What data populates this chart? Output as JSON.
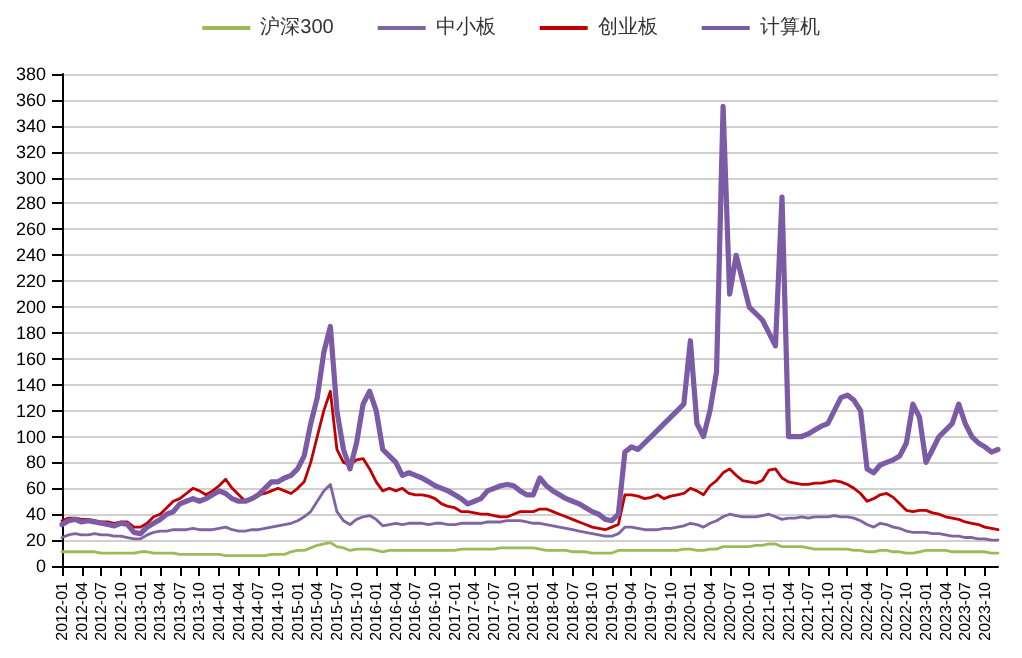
{
  "chart_data": {
    "type": "line",
    "legend": "top",
    "grid": "y",
    "marker": "none",
    "line_style": "solid",
    "ylim": [
      0,
      380
    ],
    "yticks": [
      0,
      20,
      40,
      60,
      80,
      100,
      120,
      140,
      160,
      180,
      200,
      220,
      240,
      260,
      280,
      300,
      320,
      340,
      360,
      380
    ],
    "categories": [
      "2012-01",
      null,
      null,
      "2012-04",
      null,
      null,
      "2012-07",
      null,
      null,
      "2012-10",
      null,
      null,
      "2013-01",
      null,
      null,
      "2013-04",
      null,
      null,
      "2013-07",
      null,
      null,
      "2013-10",
      null,
      null,
      "2014-01",
      null,
      null,
      "2014-04",
      null,
      null,
      "2014-07",
      null,
      null,
      "2014-10",
      null,
      null,
      "2015-01",
      null,
      null,
      "2015-04",
      null,
      null,
      "2015-07",
      null,
      null,
      "2015-10",
      null,
      null,
      "2016-01",
      null,
      null,
      "2016-04",
      null,
      null,
      "2016-07",
      null,
      null,
      "2016-10",
      null,
      null,
      "2017-01",
      null,
      null,
      "2017-04",
      null,
      null,
      "2017-07",
      null,
      null,
      "2017-10",
      null,
      null,
      "2018-01",
      null,
      null,
      "2018-04",
      null,
      null,
      "2018-07",
      null,
      null,
      "2018-10",
      null,
      null,
      "2019-01",
      null,
      null,
      "2019-04",
      null,
      null,
      "2019-07",
      null,
      null,
      "2019-10",
      null,
      null,
      "2020-01",
      null,
      null,
      "2020-04",
      null,
      null,
      "2020-07",
      null,
      null,
      "2020-10",
      null,
      null,
      "2021-01",
      null,
      null,
      "2021-04",
      null,
      null,
      "2021-07",
      null,
      null,
      "2021-10",
      null,
      null,
      "2022-01",
      null,
      null,
      "2022-04",
      null,
      null,
      "2022-07",
      null,
      null,
      "2022-10",
      null,
      null,
      "2023-01",
      null,
      null,
      "2023-04",
      null,
      null,
      "2023-07",
      null,
      null,
      "2023-10",
      null,
      null
    ],
    "series": [
      {
        "name": "沪深300",
        "color": "#9bbb59",
        "values": [
          11,
          11,
          11,
          11,
          11,
          11,
          10,
          10,
          10,
          10,
          10,
          10,
          11,
          11,
          10,
          10,
          10,
          10,
          9,
          9,
          9,
          9,
          9,
          9,
          9,
          8,
          8,
          8,
          8,
          8,
          8,
          8,
          9,
          9,
          9,
          11,
          12,
          12,
          14,
          16,
          17,
          18,
          15,
          14,
          12,
          13,
          13,
          13,
          12,
          11,
          12,
          12,
          12,
          12,
          12,
          12,
          12,
          12,
          12,
          12,
          12,
          13,
          13,
          13,
          13,
          13,
          13,
          14,
          14,
          14,
          14,
          14,
          14,
          13,
          12,
          12,
          12,
          12,
          11,
          11,
          11,
          10,
          10,
          10,
          10,
          12,
          12,
          12,
          12,
          12,
          12,
          12,
          12,
          12,
          12,
          13,
          13,
          12,
          12,
          13,
          13,
          15,
          15,
          15,
          15,
          15,
          16,
          16,
          17,
          17,
          15,
          15,
          15,
          15,
          14,
          13,
          13,
          13,
          13,
          13,
          13,
          12,
          12,
          11,
          11,
          12,
          12,
          11,
          11,
          10,
          10,
          11,
          12,
          12,
          12,
          12,
          11,
          11,
          11,
          11,
          11,
          11,
          10,
          10
        ]
      },
      {
        "name": "中小板",
        "color": "#8064a2",
        "values": [
          22,
          24,
          25,
          24,
          24,
          25,
          24,
          24,
          23,
          23,
          22,
          21,
          21,
          24,
          26,
          27,
          27,
          28,
          28,
          28,
          29,
          28,
          28,
          28,
          29,
          30,
          28,
          27,
          27,
          28,
          28,
          29,
          30,
          31,
          32,
          33,
          35,
          38,
          42,
          50,
          58,
          63,
          42,
          35,
          32,
          36,
          38,
          39,
          36,
          31,
          32,
          33,
          32,
          33,
          33,
          33,
          32,
          33,
          33,
          32,
          32,
          33,
          33,
          33,
          33,
          34,
          34,
          34,
          35,
          35,
          35,
          34,
          33,
          33,
          32,
          31,
          30,
          29,
          28,
          27,
          26,
          25,
          24,
          23,
          23,
          25,
          30,
          30,
          29,
          28,
          28,
          28,
          29,
          29,
          30,
          31,
          33,
          32,
          30,
          33,
          35,
          38,
          40,
          39,
          38,
          38,
          38,
          39,
          40,
          38,
          36,
          37,
          37,
          38,
          37,
          38,
          38,
          38,
          39,
          38,
          38,
          37,
          35,
          32,
          30,
          33,
          32,
          30,
          29,
          27,
          26,
          26,
          26,
          25,
          25,
          24,
          23,
          23,
          22,
          22,
          21,
          21,
          20,
          20
        ]
      },
      {
        "name": "创业板",
        "color": "#c00000",
        "values": [
          35,
          37,
          37,
          36,
          36,
          35,
          34,
          34,
          33,
          34,
          34,
          30,
          30,
          33,
          38,
          40,
          45,
          50,
          52,
          56,
          60,
          58,
          55,
          58,
          62,
          67,
          60,
          55,
          50,
          52,
          55,
          56,
          58,
          60,
          58,
          56,
          60,
          65,
          80,
          100,
          120,
          135,
          90,
          80,
          78,
          82,
          83,
          75,
          65,
          58,
          60,
          58,
          60,
          56,
          55,
          55,
          54,
          52,
          48,
          46,
          45,
          42,
          42,
          41,
          40,
          40,
          39,
          38,
          38,
          40,
          42,
          42,
          42,
          44,
          44,
          42,
          40,
          38,
          36,
          34,
          32,
          30,
          29,
          28,
          30,
          32,
          55,
          55,
          54,
          52,
          53,
          55,
          52,
          54,
          55,
          56,
          60,
          58,
          55,
          62,
          66,
          72,
          75,
          70,
          66,
          65,
          64,
          66,
          74,
          75,
          68,
          65,
          64,
          63,
          63,
          64,
          64,
          65,
          66,
          65,
          63,
          60,
          56,
          50,
          52,
          55,
          56,
          53,
          48,
          43,
          42,
          43,
          43,
          41,
          40,
          38,
          37,
          36,
          34,
          33,
          32,
          30,
          29,
          28
        ]
      },
      {
        "name": "计算机",
        "color": "#7b5aa6",
        "values": [
          32,
          35,
          36,
          34,
          35,
          34,
          33,
          32,
          31,
          33,
          32,
          26,
          25,
          30,
          33,
          36,
          40,
          42,
          48,
          50,
          52,
          50,
          52,
          55,
          58,
          56,
          52,
          50,
          50,
          52,
          55,
          60,
          65,
          65,
          68,
          70,
          75,
          85,
          110,
          130,
          165,
          185,
          120,
          90,
          75,
          95,
          125,
          135,
          120,
          90,
          85,
          80,
          70,
          72,
          70,
          68,
          65,
          62,
          60,
          58,
          55,
          52,
          48,
          50,
          52,
          58,
          60,
          62,
          63,
          62,
          58,
          55,
          55,
          68,
          62,
          58,
          55,
          52,
          50,
          48,
          45,
          42,
          40,
          36,
          35,
          40,
          88,
          92,
          90,
          95,
          100,
          105,
          110,
          115,
          120,
          125,
          174,
          110,
          100,
          120,
          150,
          355,
          210,
          240,
          220,
          200,
          195,
          190,
          180,
          170,
          285,
          100,
          100,
          100,
          102,
          105,
          108,
          110,
          120,
          130,
          132,
          128,
          120,
          75,
          72,
          78,
          80,
          82,
          85,
          95,
          125,
          115,
          80,
          90,
          100,
          105,
          110,
          125,
          110,
          100,
          95,
          92,
          88,
          90
        ]
      }
    ]
  }
}
